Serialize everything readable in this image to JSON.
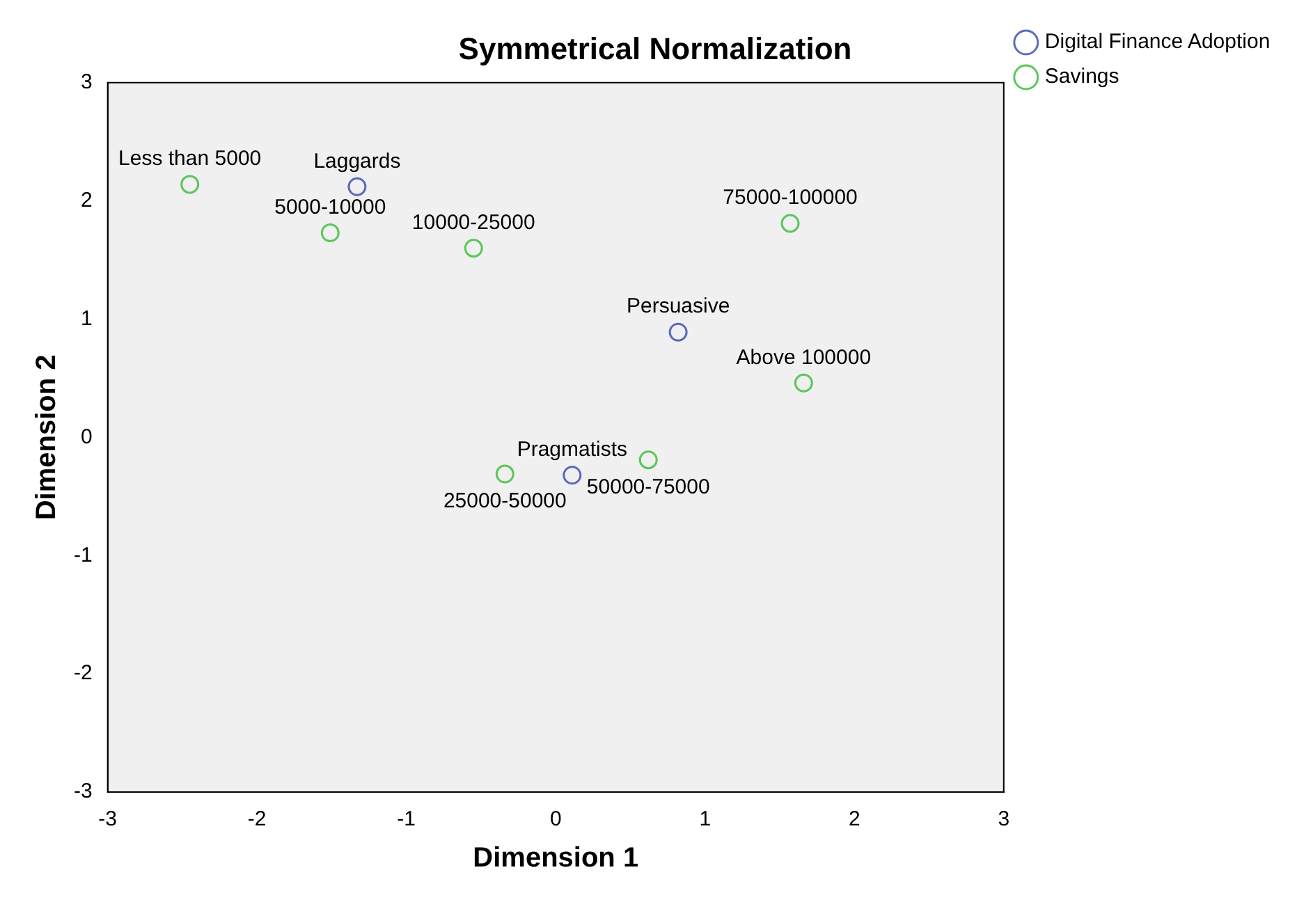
{
  "chart_data": {
    "type": "scatter",
    "title": "Symmetrical Normalization",
    "xlabel": "Dimension 1",
    "ylabel": "Dimension 2",
    "xlim": [
      -3,
      3
    ],
    "ylim": [
      -3,
      3
    ],
    "xticks": [
      -3,
      -2,
      -1,
      0,
      1,
      2,
      3
    ],
    "yticks": [
      -3,
      -2,
      -1,
      0,
      1,
      2,
      3
    ],
    "grid": false,
    "legend": "top right",
    "marker": "circle",
    "series": [
      {
        "name": "Digital Finance Adoption",
        "color": "#5a6bbf",
        "x": [
          -1.33,
          0.82,
          0.11
        ],
        "values": [
          2.12,
          0.89,
          -0.32
        ]
      },
      {
        "name": "Savings",
        "color": "#5cc65c",
        "x": [
          -2.45,
          -1.51,
          -0.55,
          1.57,
          1.66,
          -0.34,
          0.62
        ],
        "values": [
          2.14,
          1.73,
          1.6,
          1.81,
          0.46,
          -0.31,
          -0.19
        ]
      }
    ],
    "annotations": [
      {
        "text": "Laggards",
        "x": -1.33,
        "y": 2.12
      },
      {
        "text": "Persuasive",
        "x": 0.82,
        "y": 0.89
      },
      {
        "text": "Pragmatists",
        "x": 0.11,
        "y": -0.32
      },
      {
        "text": "Less than 5000",
        "x": -2.45,
        "y": 2.14
      },
      {
        "text": "5000-10000",
        "x": -1.51,
        "y": 1.73
      },
      {
        "text": "10000-25000",
        "x": -0.55,
        "y": 1.6
      },
      {
        "text": "75000-100000",
        "x": 1.57,
        "y": 1.81
      },
      {
        "text": "Above 100000",
        "x": 1.66,
        "y": 0.46
      },
      {
        "text": "25000-50000",
        "x": -0.34,
        "y": -0.31
      },
      {
        "text": "50000-75000",
        "x": 0.62,
        "y": -0.19
      }
    ]
  }
}
